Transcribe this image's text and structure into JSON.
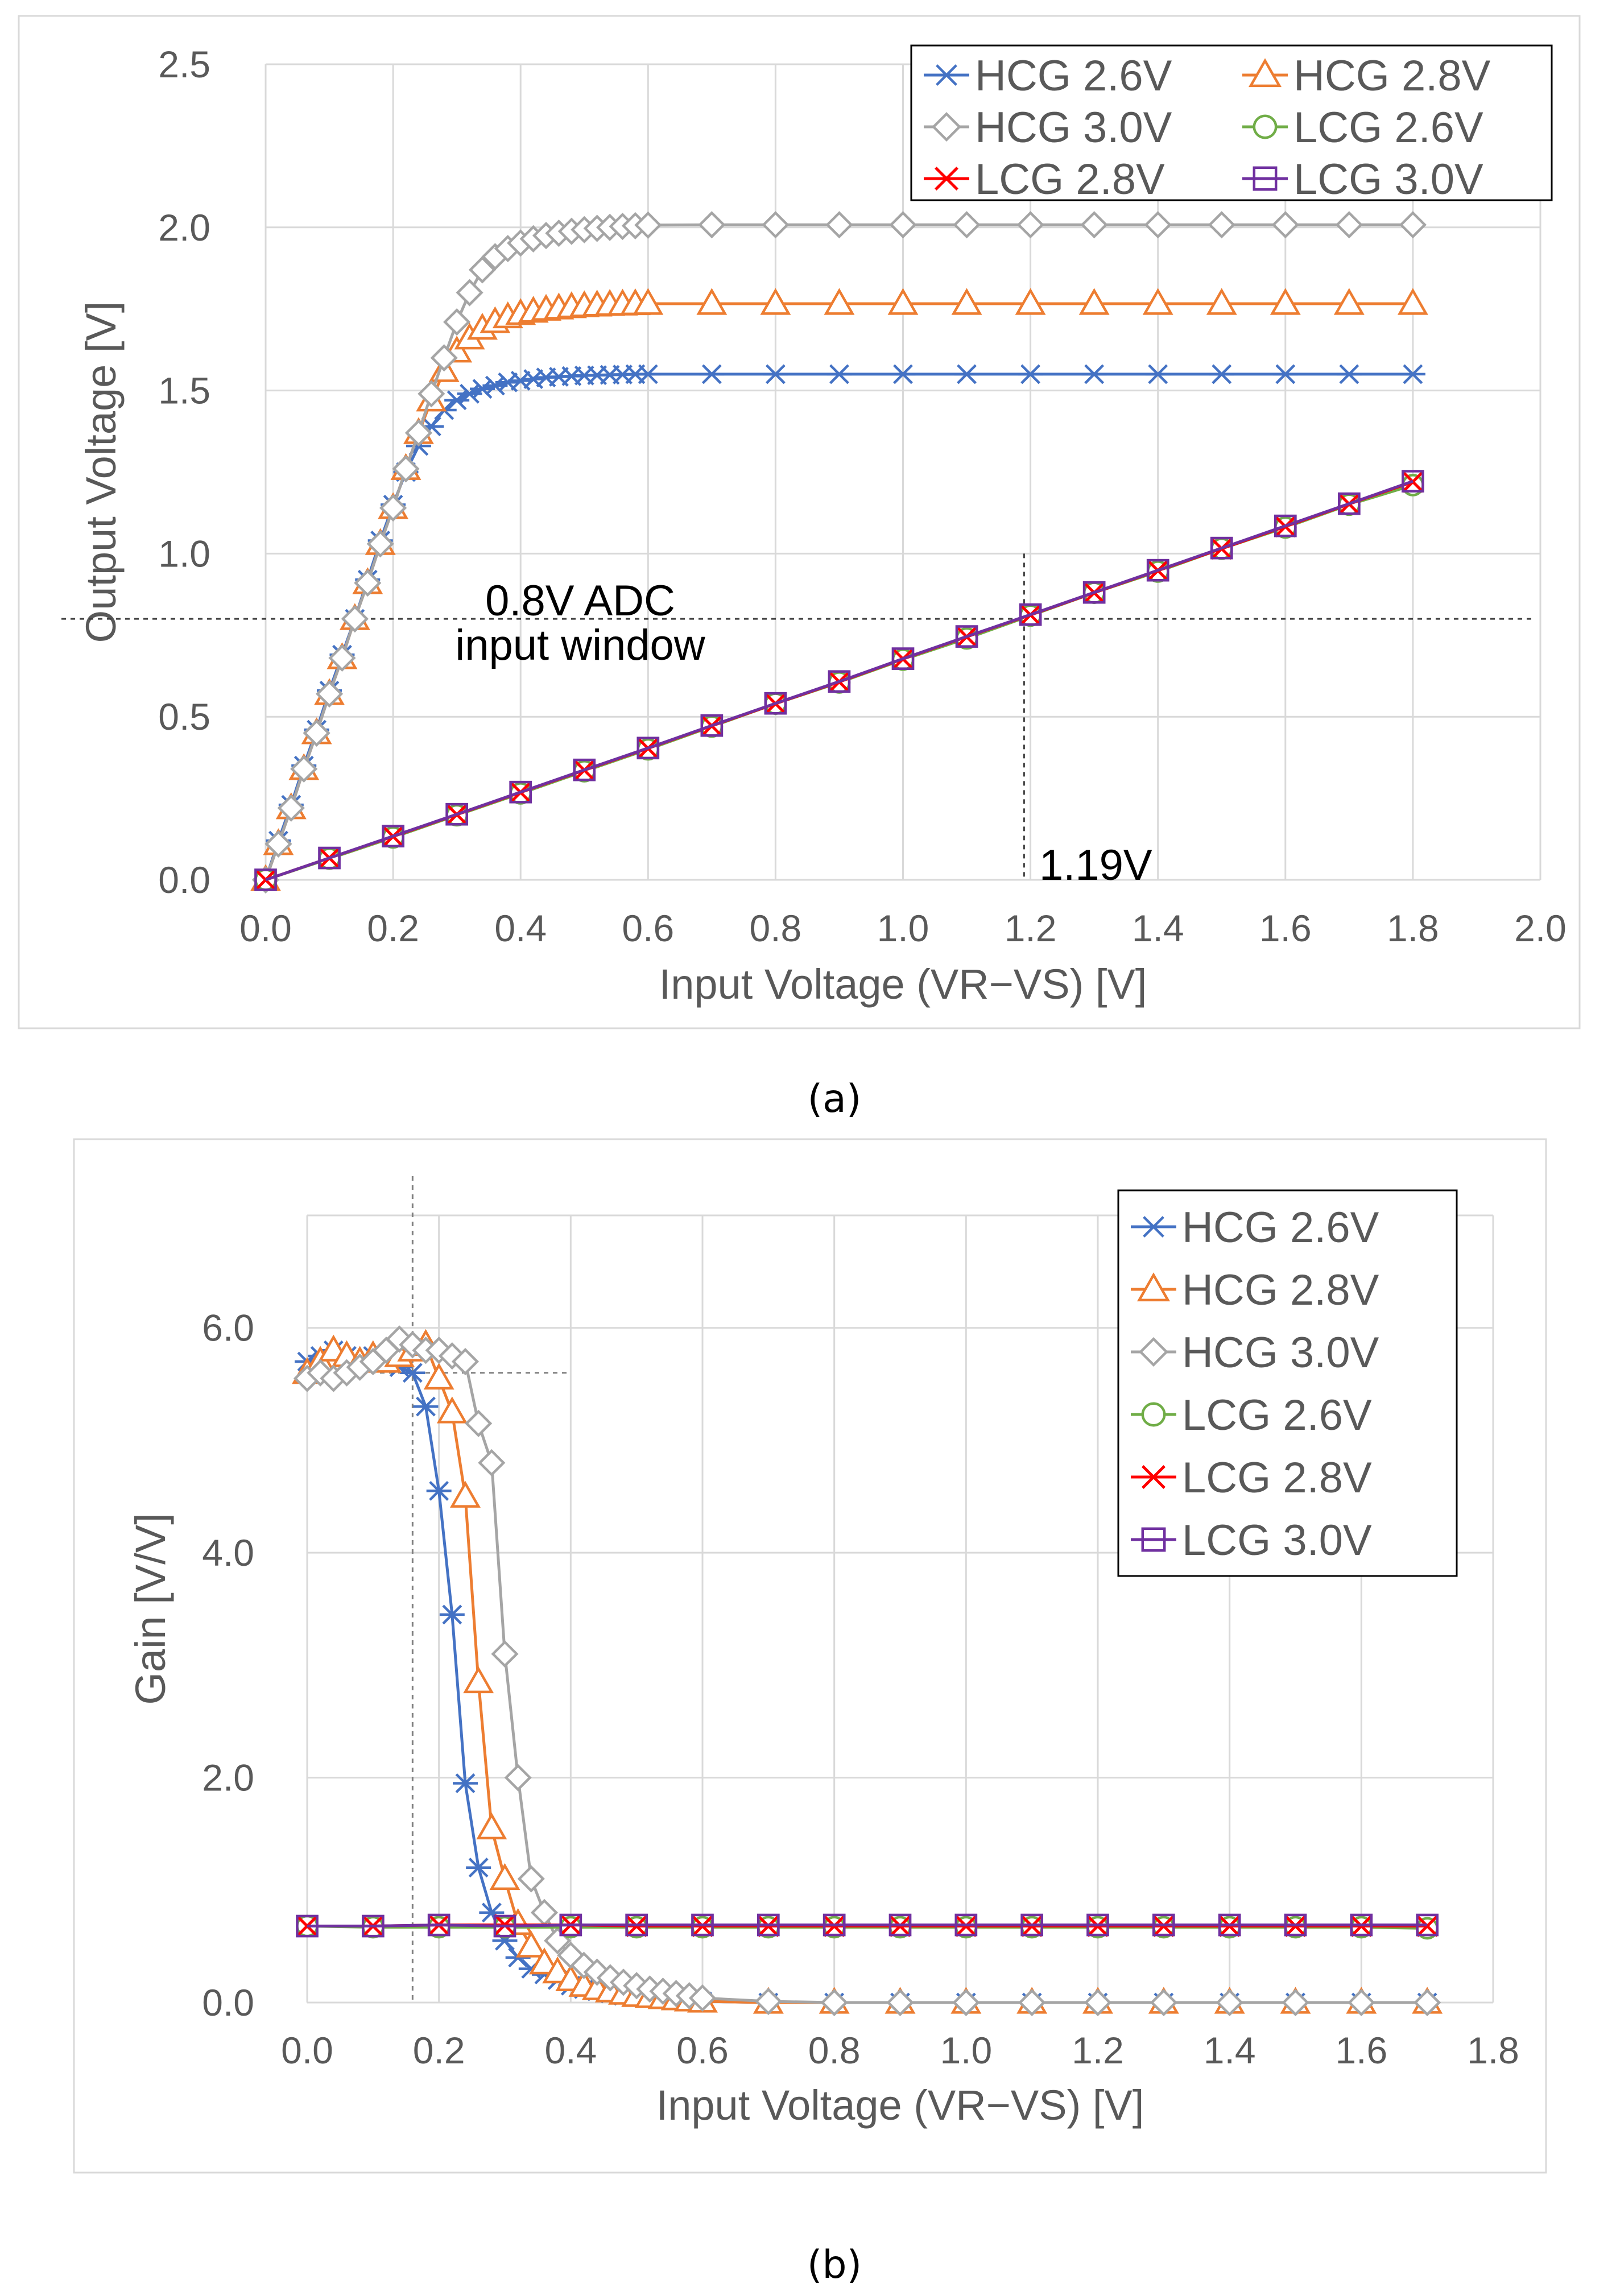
{
  "captions": {
    "a": "(a)",
    "b": "(b)"
  },
  "chart_data": [
    {
      "id": "a",
      "type": "line",
      "title": "",
      "xlabel": "Input Voltage (VR−VS) [V]",
      "ylabel": "Output Voltage [V]",
      "xlim": [
        0,
        2.0
      ],
      "ylim": [
        0,
        2.5
      ],
      "xticks": [
        "0.0",
        "0.2",
        "0.4",
        "0.6",
        "0.8",
        "1.0",
        "1.2",
        "1.4",
        "1.6",
        "1.8",
        "2.0"
      ],
      "yticks": [
        "0.0",
        "0.5",
        "1.0",
        "1.5",
        "2.0",
        "2.5"
      ],
      "grid": true,
      "legend_position": "top-right",
      "legend_columns": 2,
      "annotations": [
        {
          "text": "0.8V ADC",
          "type": "label"
        },
        {
          "text": "input window",
          "type": "label"
        },
        {
          "text": "1.19V",
          "type": "label"
        }
      ],
      "reference_lines": [
        {
          "orientation": "horizontal",
          "value": 0.8,
          "style": "dashed"
        },
        {
          "orientation": "vertical",
          "value": 1.19,
          "style": "dashed"
        }
      ],
      "series": [
        {
          "name": "HCG 2.6V",
          "color": "#4472C4",
          "marker": "asterisk",
          "x": [
            0,
            0.02,
            0.04,
            0.06,
            0.08,
            0.1,
            0.12,
            0.14,
            0.16,
            0.18,
            0.2,
            0.22,
            0.24,
            0.26,
            0.28,
            0.3,
            0.32,
            0.34,
            0.36,
            0.38,
            0.4,
            0.42,
            0.44,
            0.46,
            0.48,
            0.5,
            0.52,
            0.54,
            0.56,
            0.58,
            0.6,
            0.7,
            0.8,
            0.9,
            1.0,
            1.1,
            1.2,
            1.3,
            1.4,
            1.5,
            1.6,
            1.7,
            1.8
          ],
          "y": [
            0,
            0.12,
            0.23,
            0.35,
            0.46,
            0.58,
            0.69,
            0.8,
            0.92,
            1.04,
            1.15,
            1.25,
            1.33,
            1.39,
            1.44,
            1.47,
            1.49,
            1.505,
            1.515,
            1.525,
            1.53,
            1.535,
            1.54,
            1.542,
            1.544,
            1.546,
            1.547,
            1.548,
            1.549,
            1.55,
            1.55,
            1.55,
            1.55,
            1.55,
            1.55,
            1.55,
            1.55,
            1.55,
            1.55,
            1.55,
            1.55,
            1.55,
            1.55
          ]
        },
        {
          "name": "HCG 2.8V",
          "color": "#ED7D31",
          "marker": "triangle",
          "x": [
            0,
            0.02,
            0.04,
            0.06,
            0.08,
            0.1,
            0.12,
            0.14,
            0.16,
            0.18,
            0.2,
            0.22,
            0.24,
            0.26,
            0.28,
            0.3,
            0.32,
            0.34,
            0.36,
            0.38,
            0.4,
            0.42,
            0.44,
            0.46,
            0.48,
            0.5,
            0.52,
            0.54,
            0.56,
            0.58,
            0.6,
            0.7,
            0.8,
            0.9,
            1.0,
            1.1,
            1.2,
            1.3,
            1.4,
            1.5,
            1.6,
            1.7,
            1.8
          ],
          "y": [
            0,
            0.11,
            0.22,
            0.34,
            0.45,
            0.57,
            0.68,
            0.8,
            0.91,
            1.03,
            1.14,
            1.26,
            1.37,
            1.47,
            1.56,
            1.62,
            1.66,
            1.69,
            1.71,
            1.725,
            1.735,
            1.742,
            1.748,
            1.752,
            1.756,
            1.759,
            1.761,
            1.763,
            1.764,
            1.765,
            1.766,
            1.766,
            1.766,
            1.766,
            1.766,
            1.766,
            1.766,
            1.766,
            1.766,
            1.766,
            1.766,
            1.766,
            1.766
          ]
        },
        {
          "name": "HCG 3.0V",
          "color": "#A5A5A5",
          "marker": "diamond",
          "x": [
            0,
            0.02,
            0.04,
            0.06,
            0.08,
            0.1,
            0.12,
            0.14,
            0.16,
            0.18,
            0.2,
            0.22,
            0.24,
            0.26,
            0.28,
            0.3,
            0.32,
            0.34,
            0.36,
            0.38,
            0.4,
            0.42,
            0.44,
            0.46,
            0.48,
            0.5,
            0.52,
            0.54,
            0.56,
            0.58,
            0.6,
            0.7,
            0.8,
            0.9,
            1.0,
            1.1,
            1.2,
            1.3,
            1.4,
            1.5,
            1.6,
            1.7,
            1.8
          ],
          "y": [
            0,
            0.11,
            0.22,
            0.34,
            0.45,
            0.57,
            0.68,
            0.8,
            0.91,
            1.03,
            1.14,
            1.26,
            1.37,
            1.49,
            1.6,
            1.71,
            1.8,
            1.87,
            1.91,
            1.935,
            1.952,
            1.965,
            1.975,
            1.982,
            1.988,
            1.993,
            1.997,
            2.0,
            2.003,
            2.005,
            2.007,
            2.008,
            2.008,
            2.008,
            2.008,
            2.008,
            2.008,
            2.008,
            2.008,
            2.008,
            2.008,
            2.008,
            2.008
          ]
        },
        {
          "name": "LCG 2.6V",
          "color": "#70AD47",
          "marker": "circle",
          "x": [
            0,
            0.1,
            0.2,
            0.3,
            0.4,
            0.5,
            0.6,
            0.7,
            0.8,
            0.9,
            1.0,
            1.1,
            1.2,
            1.3,
            1.4,
            1.5,
            1.6,
            1.7,
            1.8
          ],
          "y": [
            0,
            0.065,
            0.13,
            0.198,
            0.265,
            0.333,
            0.4,
            0.47,
            0.54,
            0.605,
            0.675,
            0.74,
            0.81,
            0.88,
            0.945,
            1.015,
            1.08,
            1.15,
            1.21
          ]
        },
        {
          "name": "LCG 2.8V",
          "color": "#FF0000",
          "marker": "x",
          "x": [
            0,
            0.1,
            0.2,
            0.3,
            0.4,
            0.5,
            0.6,
            0.7,
            0.8,
            0.9,
            1.0,
            1.1,
            1.2,
            1.3,
            1.4,
            1.5,
            1.6,
            1.7,
            1.8
          ],
          "y": [
            0,
            0.067,
            0.133,
            0.2,
            0.268,
            0.336,
            0.403,
            0.472,
            0.54,
            0.607,
            0.677,
            0.745,
            0.812,
            0.88,
            0.948,
            1.015,
            1.083,
            1.152,
            1.22
          ]
        },
        {
          "name": "LCG 3.0V",
          "color": "#7030A0",
          "marker": "square",
          "x": [
            0,
            0.1,
            0.2,
            0.3,
            0.4,
            0.5,
            0.6,
            0.7,
            0.8,
            0.9,
            1.0,
            1.1,
            1.2,
            1.3,
            1.4,
            1.5,
            1.6,
            1.7,
            1.8
          ],
          "y": [
            0,
            0.067,
            0.134,
            0.201,
            0.269,
            0.337,
            0.404,
            0.473,
            0.541,
            0.608,
            0.678,
            0.746,
            0.813,
            0.881,
            0.949,
            1.017,
            1.085,
            1.153,
            1.222
          ]
        }
      ]
    },
    {
      "id": "b",
      "type": "line",
      "title": "",
      "xlabel": "Input Voltage (VR−VS) [V]",
      "ylabel": "Gain [V/V]",
      "xlim": [
        0,
        1.8
      ],
      "ylim": [
        0,
        7
      ],
      "xticks": [
        "0.0",
        "0.2",
        "0.4",
        "0.6",
        "0.8",
        "1.0",
        "1.2",
        "1.4",
        "1.6",
        "1.8"
      ],
      "yticks": [
        "0.0",
        "2.0",
        "4.0",
        "6.0"
      ],
      "grid": true,
      "legend_position": "top-right",
      "legend_columns": 1,
      "reference_lines": [
        {
          "orientation": "vertical",
          "value": 0.16,
          "style": "dashed"
        },
        {
          "orientation": "horizontal",
          "value": 5.6,
          "style": "dashed",
          "x_end": 0.4
        }
      ],
      "series": [
        {
          "name": "HCG 2.6V",
          "color": "#4472C4",
          "marker": "asterisk",
          "x": [
            0,
            0.02,
            0.04,
            0.06,
            0.08,
            0.1,
            0.12,
            0.14,
            0.16,
            0.18,
            0.2,
            0.22,
            0.24,
            0.26,
            0.28,
            0.3,
            0.32,
            0.34,
            0.36,
            0.38,
            0.4,
            0.42,
            0.44,
            0.46,
            0.48,
            0.5,
            0.52,
            0.54,
            0.56,
            0.58,
            0.6,
            0.7,
            0.8,
            0.9,
            1.0,
            1.1,
            1.2,
            1.3,
            1.4,
            1.5,
            1.6,
            1.7
          ],
          "y": [
            5.7,
            5.75,
            5.8,
            5.75,
            5.7,
            5.75,
            5.7,
            5.65,
            5.6,
            5.3,
            4.55,
            3.45,
            1.95,
            1.2,
            0.8,
            0.55,
            0.4,
            0.3,
            0.25,
            0.2,
            0.15,
            0.12,
            0.1,
            0.08,
            0.06,
            0.05,
            0.04,
            0.03,
            0.02,
            0.01,
            0.01,
            0,
            0,
            0,
            0,
            0,
            0,
            0,
            0,
            0,
            0,
            0
          ]
        },
        {
          "name": "HCG 2.8V",
          "color": "#ED7D31",
          "marker": "triangle",
          "x": [
            0,
            0.02,
            0.04,
            0.06,
            0.08,
            0.1,
            0.12,
            0.14,
            0.16,
            0.18,
            0.2,
            0.22,
            0.24,
            0.26,
            0.28,
            0.3,
            0.32,
            0.34,
            0.36,
            0.38,
            0.4,
            0.42,
            0.44,
            0.46,
            0.48,
            0.5,
            0.52,
            0.54,
            0.56,
            0.58,
            0.6,
            0.7,
            0.8,
            0.9,
            1.0,
            1.1,
            1.2,
            1.3,
            1.4,
            1.5,
            1.6,
            1.7
          ],
          "y": [
            5.6,
            5.7,
            5.8,
            5.75,
            5.7,
            5.75,
            5.7,
            5.75,
            5.8,
            5.85,
            5.55,
            5.25,
            4.5,
            2.85,
            1.55,
            1.1,
            0.7,
            0.5,
            0.35,
            0.27,
            0.2,
            0.15,
            0.12,
            0.1,
            0.08,
            0.06,
            0.05,
            0.04,
            0.03,
            0.02,
            0.01,
            0,
            0,
            0,
            0,
            0,
            0,
            0,
            0,
            0,
            0,
            0
          ]
        },
        {
          "name": "HCG 3.0V",
          "color": "#A5A5A5",
          "marker": "diamond",
          "x": [
            0,
            0.02,
            0.04,
            0.06,
            0.08,
            0.1,
            0.12,
            0.14,
            0.16,
            0.18,
            0.2,
            0.22,
            0.24,
            0.26,
            0.28,
            0.3,
            0.32,
            0.34,
            0.36,
            0.38,
            0.4,
            0.42,
            0.44,
            0.46,
            0.48,
            0.5,
            0.52,
            0.54,
            0.56,
            0.58,
            0.6,
            0.7,
            0.8,
            0.9,
            1.0,
            1.1,
            1.2,
            1.3,
            1.4,
            1.5,
            1.6,
            1.7
          ],
          "y": [
            5.55,
            5.6,
            5.55,
            5.6,
            5.65,
            5.7,
            5.8,
            5.9,
            5.85,
            5.8,
            5.8,
            5.75,
            5.7,
            5.15,
            4.8,
            3.1,
            2.0,
            1.1,
            0.8,
            0.55,
            0.42,
            0.33,
            0.27,
            0.22,
            0.18,
            0.15,
            0.12,
            0.1,
            0.08,
            0.06,
            0.04,
            0.01,
            0,
            0,
            0,
            0,
            0,
            0,
            0,
            0,
            0,
            0
          ]
        },
        {
          "name": "LCG 2.6V",
          "color": "#70AD47",
          "marker": "circle",
          "x": [
            0,
            0.1,
            0.2,
            0.3,
            0.4,
            0.5,
            0.6,
            0.7,
            0.8,
            0.9,
            1.0,
            1.1,
            1.2,
            1.3,
            1.4,
            1.5,
            1.6,
            1.7
          ],
          "y": [
            0.68,
            0.67,
            0.67,
            0.67,
            0.67,
            0.67,
            0.67,
            0.67,
            0.67,
            0.67,
            0.67,
            0.67,
            0.67,
            0.67,
            0.67,
            0.67,
            0.67,
            0.66
          ]
        },
        {
          "name": "LCG 2.8V",
          "color": "#FF0000",
          "marker": "x",
          "x": [
            0,
            0.1,
            0.2,
            0.3,
            0.4,
            0.5,
            0.6,
            0.7,
            0.8,
            0.9,
            1.0,
            1.1,
            1.2,
            1.3,
            1.4,
            1.5,
            1.6,
            1.7
          ],
          "y": [
            0.68,
            0.68,
            0.69,
            0.69,
            0.69,
            0.68,
            0.68,
            0.68,
            0.68,
            0.68,
            0.68,
            0.68,
            0.68,
            0.68,
            0.68,
            0.68,
            0.68,
            0.68
          ]
        },
        {
          "name": "LCG 3.0V",
          "color": "#7030A0",
          "marker": "square",
          "x": [
            0,
            0.1,
            0.2,
            0.3,
            0.4,
            0.5,
            0.6,
            0.7,
            0.8,
            0.9,
            1.0,
            1.1,
            1.2,
            1.3,
            1.4,
            1.5,
            1.6,
            1.7
          ],
          "y": [
            0.68,
            0.68,
            0.69,
            0.68,
            0.69,
            0.69,
            0.69,
            0.69,
            0.69,
            0.69,
            0.69,
            0.69,
            0.69,
            0.69,
            0.69,
            0.69,
            0.69,
            0.69
          ]
        }
      ]
    }
  ]
}
